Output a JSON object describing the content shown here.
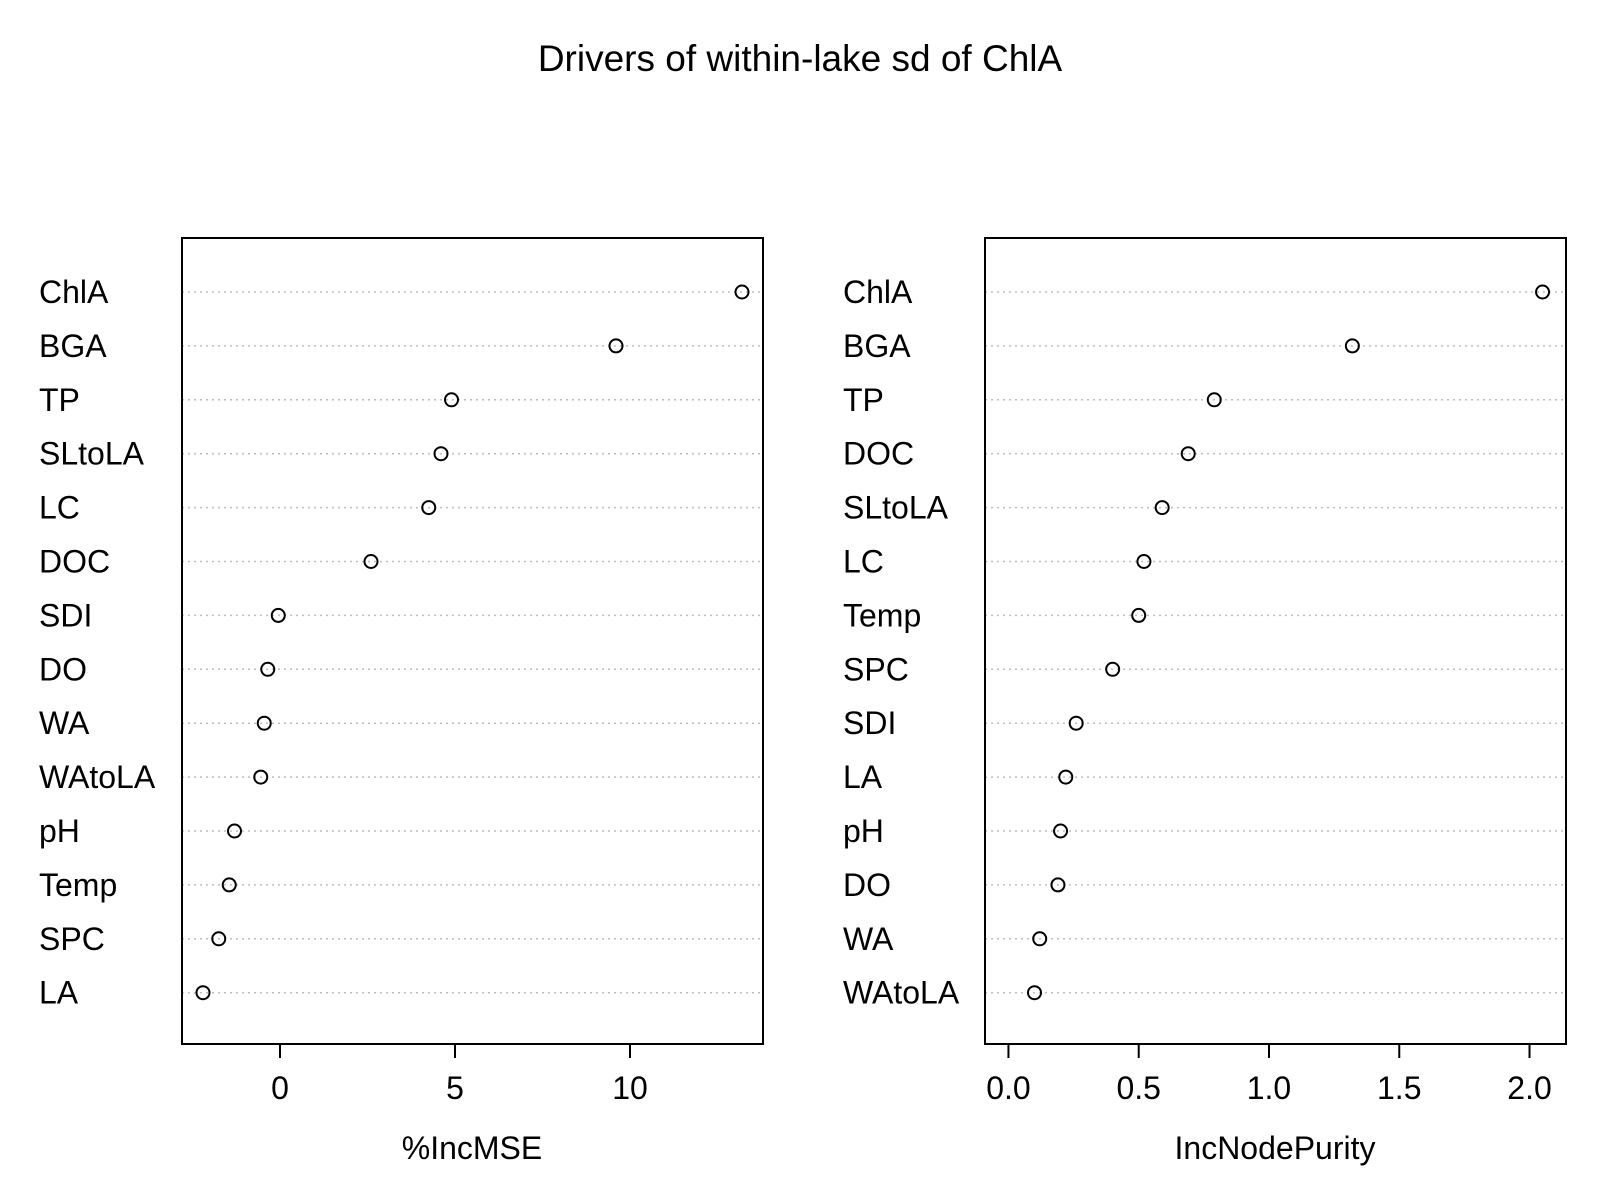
{
  "title": "Drivers of within-lake sd of ChlA",
  "colors": {
    "background": "#ffffff",
    "axis": "#000000",
    "grid": "#bebebe",
    "point": "#000000"
  },
  "chart_data": [
    {
      "type": "scatter",
      "subtype": "dotchart",
      "xlabel": "%IncMSE",
      "ylabel": "",
      "xlim": [
        -2.8,
        13.8
      ],
      "xticks": [
        0,
        5,
        10
      ],
      "grid": "horizontal dotted",
      "categories": [
        "ChlA",
        "BGA",
        "TP",
        "SLtoLA",
        "LC",
        "DOC",
        "SDI",
        "DO",
        "WA",
        "WAtoLA",
        "pH",
        "Temp",
        "SPC",
        "LA"
      ],
      "values": [
        13.2,
        9.6,
        4.9,
        4.6,
        4.25,
        2.6,
        -0.05,
        -0.35,
        -0.45,
        -0.55,
        -1.3,
        -1.45,
        -1.75,
        -2.2
      ]
    },
    {
      "type": "scatter",
      "subtype": "dotchart",
      "xlabel": "IncNodePurity",
      "ylabel": "",
      "xlim": [
        -0.09,
        2.14
      ],
      "xticks": [
        0.0,
        0.5,
        1.0,
        1.5,
        2.0
      ],
      "xtick_labels": [
        "0.0",
        "0.5",
        "1.0",
        "1.5",
        "2.0"
      ],
      "grid": "horizontal dotted",
      "categories": [
        "ChlA",
        "BGA",
        "TP",
        "DOC",
        "SLtoLA",
        "LC",
        "Temp",
        "SPC",
        "SDI",
        "LA",
        "pH",
        "DO",
        "WA",
        "WAtoLA"
      ],
      "values": [
        2.05,
        1.32,
        0.79,
        0.69,
        0.59,
        0.52,
        0.5,
        0.4,
        0.26,
        0.22,
        0.2,
        0.19,
        0.12,
        0.1
      ]
    }
  ]
}
